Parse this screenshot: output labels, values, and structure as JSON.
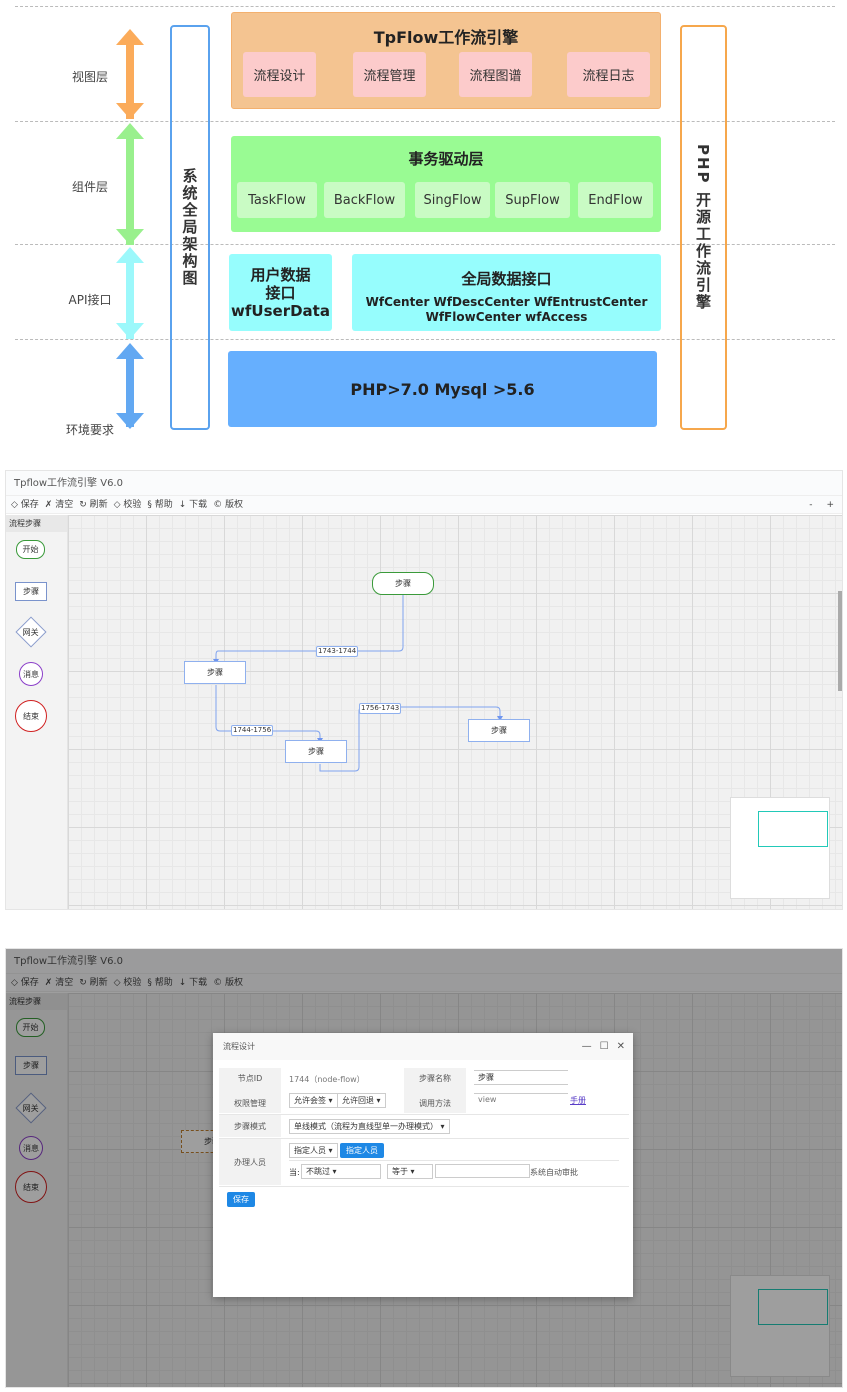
{
  "architecture": {
    "layers": [
      "视图层",
      "组件层",
      "API接口",
      "环境要求"
    ],
    "left_banner": "系统全局架构图",
    "right_banner": "PHP 开源工作流引擎",
    "view_layer": {
      "title": "TpFlow工作流引擎",
      "items": [
        "流程设计",
        "流程管理",
        "流程图谱",
        "流程日志"
      ]
    },
    "component_layer": {
      "title": "事务驱动层",
      "items": [
        "TaskFlow",
        "BackFlow",
        "SingFlow",
        "SupFlow",
        "EndFlow"
      ]
    },
    "api_layer": {
      "user_title": "用户数据接口",
      "user_name": "wfUserData",
      "global_title": "全局数据接口",
      "global_items": "WfCenter WfDescCenter WfEntrustCenter WfFlowCenter wfAccess"
    },
    "env": "PHP>7.0 Mysql >5.6",
    "colors": {
      "view": "#f4c491",
      "component": "#99fb93",
      "api": "#96fdfd",
      "env": "#66affe"
    }
  },
  "designer": {
    "title": "Tpflow工作流引擎 V6.0",
    "toolbar": [
      "◇ 保存",
      "✗ 清空",
      "↻ 刷新",
      "◇ 校验",
      "§ 帮助",
      "↓ 下载",
      "© 版权"
    ],
    "zoom": [
      "-",
      "+"
    ],
    "palette_title": "流程步骤",
    "palette": [
      "开始",
      "步骤",
      "网关",
      "消息",
      "结束"
    ],
    "nodes": [
      "步骤",
      "步骤",
      "步骤",
      "步骤"
    ],
    "edges": [
      "1743-1744",
      "1744-1756",
      "1756-1743"
    ]
  },
  "dialog": {
    "title": "流程设计",
    "controls": [
      "—",
      "☐",
      "✕"
    ],
    "node_id_label": "节点ID",
    "node_id": "1744（node-flow）",
    "step_name_label": "步骤名称",
    "step_name": "步骤",
    "perm_label": "权限管理",
    "perm_opts": [
      "允许会签",
      "允许回退"
    ],
    "method_label": "调用方法",
    "method": "view",
    "manual_link": "手册",
    "mode_label": "步骤模式",
    "mode": "单线模式（流程为直线型单一办理模式）",
    "handler_label": "办理人员",
    "handler_sel": "指定人员",
    "handler_btn": "指定人员",
    "cond_prefix": "当:",
    "cond_sel1": "不跳过",
    "cond_sel2": "等于",
    "cond_suffix": "系统自动审批",
    "save": "保存"
  }
}
